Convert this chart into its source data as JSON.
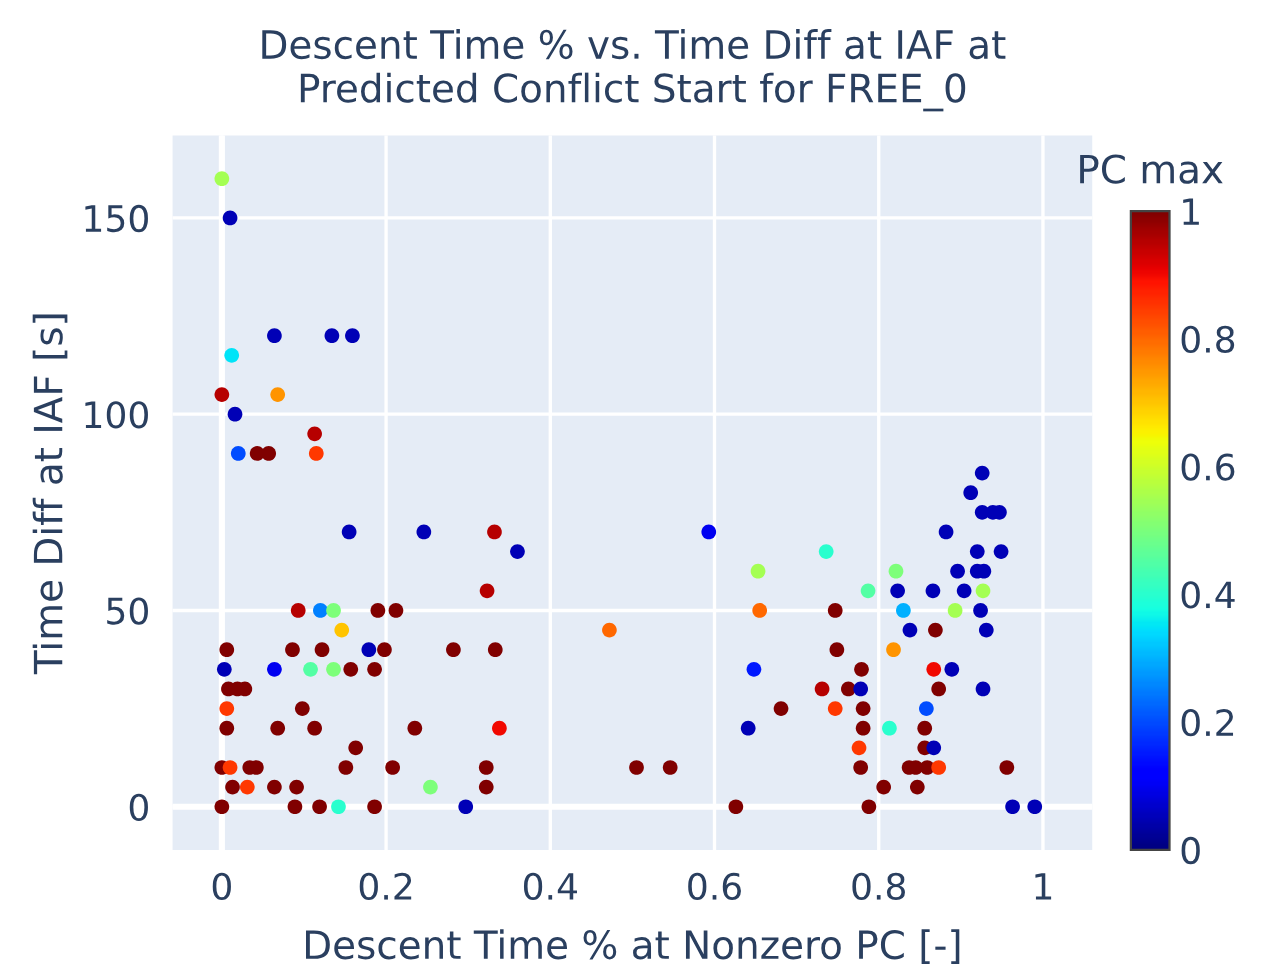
{
  "chart_data": {
    "type": "scatter",
    "title": "Descent Time % vs. Time Diff at IAF at\nPredicted Conflict Start for FREE_0",
    "xlabel": "Descent Time % at Nonzero PC [-]",
    "ylabel": "Time Diff at IAF [s]",
    "clabel": "PC max",
    "x": [
      0,
      0.01,
      0.064,
      0.134,
      0.159,
      0.012,
      0,
      0.068,
      0.016,
      0.113,
      0.02,
      0.043,
      0.057,
      0.115,
      0.155,
      0.246,
      0.332,
      0.36,
      0.323,
      0.093,
      0.12,
      0.136,
      0.19,
      0.212,
      0.146,
      0.006,
      0.086,
      0.122,
      0.179,
      0.198,
      0.282,
      0.333,
      0.003,
      0.064,
      0.108,
      0.136,
      0.157,
      0.186,
      0.008,
      0.019,
      0.028,
      0.006,
      0.098,
      0.006,
      0.068,
      0.113,
      0.235,
      0.338,
      0.163,
      0,
      0.01,
      0.034,
      0.042,
      0.151,
      0.208,
      0.322,
      0.013,
      0.031,
      0.064,
      0.091,
      0.254,
      0.322,
      0,
      0.089,
      0.119,
      0.142,
      0.186,
      0.297,
      0.472,
      0.505,
      0.546,
      0.626,
      0.593,
      0.736,
      0.653,
      0.821,
      0.655,
      0.747,
      0.787,
      0.823,
      0.866,
      0.904,
      0.927,
      0.83,
      0.893,
      0.924,
      0.838,
      0.869,
      0.931,
      0.749,
      0.818,
      0.648,
      0.779,
      0.867,
      0.889,
      0.731,
      0.763,
      0.778,
      0.873,
      0.927,
      0.681,
      0.747,
      0.781,
      0.858,
      0.641,
      0.781,
      0.813,
      0.856,
      0.776,
      0.856,
      0.867,
      0.778,
      0.837,
      0.845,
      0.859,
      0.873,
      0.956,
      0.806,
      0.847,
      0.788,
      0.963,
      0.99,
      0.926,
      0.912,
      0.926,
      0.939,
      0.947,
      0.882,
      0.92,
      0.949,
      0.896,
      0.92,
      0.928
    ],
    "values": [
      160,
      150,
      120,
      120,
      120,
      115,
      105,
      105,
      100,
      95,
      90,
      90,
      90,
      90,
      70,
      70,
      70,
      65,
      55,
      50,
      50,
      50,
      50,
      50,
      45,
      40,
      40,
      40,
      40,
      40,
      40,
      40,
      35,
      35,
      35,
      35,
      35,
      35,
      30,
      30,
      30,
      25,
      25,
      20,
      20,
      20,
      20,
      20,
      15,
      10,
      10,
      10,
      10,
      10,
      10,
      10,
      5,
      5,
      5,
      5,
      5,
      5,
      0,
      0,
      0,
      0,
      0,
      0,
      45,
      10,
      10,
      0,
      70,
      65,
      60,
      60,
      50,
      50,
      55,
      55,
      55,
      55,
      55,
      50,
      50,
      50,
      45,
      45,
      45,
      40,
      40,
      35,
      35,
      35,
      35,
      30,
      30,
      30,
      30,
      30,
      25,
      25,
      25,
      25,
      20,
      20,
      20,
      20,
      15,
      15,
      15,
      10,
      10,
      10,
      10,
      10,
      10,
      5,
      5,
      0,
      0,
      0,
      85,
      80,
      75,
      75,
      75,
      70,
      65,
      65,
      60,
      60,
      60
    ],
    "cvalues": [
      0.55,
      0.05,
      0.05,
      0.05,
      0.05,
      0.35,
      0.95,
      0.75,
      0.05,
      0.95,
      0.2,
      1,
      1,
      0.85,
      0.05,
      0.05,
      0.95,
      0.05,
      0.95,
      0.95,
      0.25,
      0.5,
      1,
      1,
      0.7,
      1,
      1,
      1,
      0.05,
      1,
      1,
      1,
      0.05,
      0.1,
      0.45,
      0.5,
      1,
      1,
      1,
      1,
      1,
      0.85,
      1,
      1,
      1,
      1,
      1,
      0.9,
      1,
      1,
      0.85,
      1,
      1,
      1,
      1,
      1,
      1,
      0.85,
      1,
      1,
      0.5,
      1,
      1,
      1,
      1,
      0.4,
      1,
      0.05,
      0.8,
      1,
      1,
      1,
      0.1,
      0.4,
      0.55,
      0.5,
      0.8,
      1,
      0.45,
      0.05,
      0.05,
      0.05,
      0.55,
      0.3,
      0.55,
      0.05,
      0.05,
      1,
      0.05,
      1,
      0.75,
      0.15,
      1,
      0.9,
      0.05,
      0.95,
      1,
      0.05,
      1,
      0.05,
      1,
      0.85,
      1,
      0.2,
      0.05,
      1,
      0.4,
      1,
      0.85,
      1,
      0.05,
      1,
      1,
      1,
      1,
      0.85,
      1,
      1,
      1,
      1,
      0.05,
      0.05,
      0.05,
      0.05,
      0.05,
      0.05,
      0.05,
      0.05,
      0.05,
      0.05,
      0.05,
      0.05,
      0.05
    ],
    "xlim": [
      -0.06,
      1.06
    ],
    "ylim": [
      -11,
      171
    ],
    "xticks": [
      0,
      0.2,
      0.4,
      0.6,
      0.8,
      1
    ],
    "yticks": [
      0,
      50,
      100,
      150
    ],
    "clim": [
      0,
      1
    ],
    "cticks": [
      0,
      0.2,
      0.4,
      0.6,
      0.8,
      1
    ],
    "grid": true,
    "legend": false,
    "marker": "circle"
  }
}
